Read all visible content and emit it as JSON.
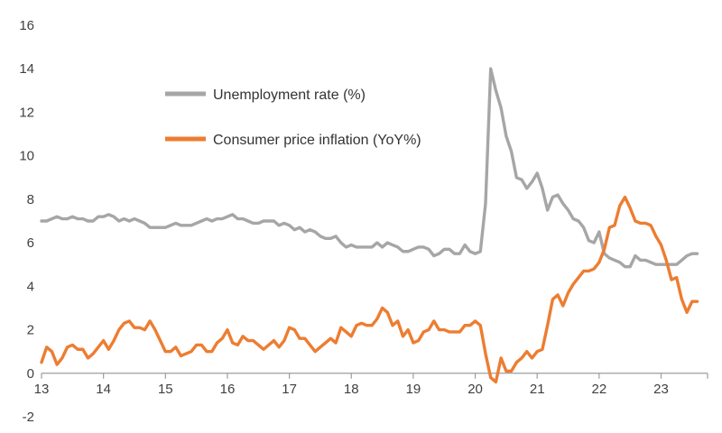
{
  "chart_data": {
    "type": "line",
    "title": "",
    "background_color": "#ffffff",
    "x_axis": {
      "label": "",
      "ticks": [
        "13",
        "14",
        "15",
        "16",
        "17",
        "18",
        "19",
        "20",
        "21",
        "22",
        "23"
      ],
      "range_start": 2013.0,
      "range_end": 2023.75,
      "frequency": "monthly",
      "start_month": "2013-01",
      "end_month": "2023-08",
      "axis_line_at_value": 0,
      "axis_color": "#9d9d9d"
    },
    "y_axis": {
      "label": "",
      "min": -2,
      "max": 16,
      "tick_step": 2,
      "ticks": [
        "-2",
        "0",
        "2",
        "4",
        "6",
        "8",
        "10",
        "12",
        "14",
        "16"
      ],
      "gridlines": false
    },
    "legend": {
      "position": "inside-top-left",
      "entries": [
        "Unemployment rate (%)",
        "Consumer price inflation (YoY%)"
      ]
    },
    "series": [
      {
        "name": "Unemployment rate (%)",
        "color": "#A6A6A6",
        "line_width": 3.4,
        "values": [
          7.0,
          7.0,
          7.1,
          7.2,
          7.1,
          7.1,
          7.2,
          7.1,
          7.1,
          7.0,
          7.0,
          7.2,
          7.2,
          7.3,
          7.2,
          7.0,
          7.1,
          7.0,
          7.1,
          7.0,
          6.9,
          6.7,
          6.7,
          6.7,
          6.7,
          6.8,
          6.9,
          6.8,
          6.8,
          6.8,
          6.9,
          7.0,
          7.1,
          7.0,
          7.1,
          7.1,
          7.2,
          7.3,
          7.1,
          7.1,
          7.0,
          6.9,
          6.9,
          7.0,
          7.0,
          7.0,
          6.8,
          6.9,
          6.8,
          6.6,
          6.7,
          6.5,
          6.6,
          6.5,
          6.3,
          6.2,
          6.2,
          6.3,
          6.0,
          5.8,
          5.9,
          5.8,
          5.8,
          5.8,
          5.8,
          6.0,
          5.8,
          6.0,
          5.9,
          5.8,
          5.6,
          5.6,
          5.7,
          5.8,
          5.8,
          5.7,
          5.4,
          5.5,
          5.7,
          5.7,
          5.5,
          5.5,
          5.9,
          5.6,
          5.5,
          5.6,
          7.8,
          14.0,
          13.0,
          12.2,
          10.9,
          10.2,
          9.0,
          8.9,
          8.5,
          8.8,
          9.2,
          8.5,
          7.5,
          8.1,
          8.2,
          7.8,
          7.5,
          7.1,
          7.0,
          6.7,
          6.1,
          6.0,
          6.5,
          5.5,
          5.3,
          5.2,
          5.1,
          4.9,
          4.9,
          5.4,
          5.2,
          5.2,
          5.1,
          5.0,
          5.0,
          5.0,
          5.0,
          5.0,
          5.2,
          5.4,
          5.5,
          5.5
        ]
      },
      {
        "name": "Consumer price inflation (YoY%)",
        "color": "#ED7D31",
        "line_width": 3.4,
        "values": [
          0.5,
          1.2,
          1.0,
          0.4,
          0.7,
          1.2,
          1.3,
          1.1,
          1.1,
          0.7,
          0.9,
          1.2,
          1.5,
          1.1,
          1.5,
          2.0,
          2.3,
          2.4,
          2.1,
          2.1,
          2.0,
          2.4,
          2.0,
          1.5,
          1.0,
          1.0,
          1.2,
          0.8,
          0.9,
          1.0,
          1.3,
          1.3,
          1.0,
          1.0,
          1.4,
          1.6,
          2.0,
          1.4,
          1.3,
          1.7,
          1.5,
          1.5,
          1.3,
          1.1,
          1.3,
          1.5,
          1.2,
          1.5,
          2.1,
          2.0,
          1.6,
          1.6,
          1.3,
          1.0,
          1.2,
          1.4,
          1.6,
          1.4,
          2.1,
          1.9,
          1.7,
          2.2,
          2.3,
          2.2,
          2.2,
          2.5,
          3.0,
          2.8,
          2.2,
          2.4,
          1.7,
          2.0,
          1.4,
          1.5,
          1.9,
          2.0,
          2.4,
          2.0,
          2.0,
          1.9,
          1.9,
          1.9,
          2.2,
          2.2,
          2.4,
          2.2,
          0.9,
          -0.2,
          -0.4,
          0.7,
          0.1,
          0.1,
          0.5,
          0.7,
          1.0,
          0.7,
          1.0,
          1.1,
          2.2,
          3.4,
          3.6,
          3.1,
          3.7,
          4.1,
          4.4,
          4.7,
          4.7,
          4.8,
          5.1,
          5.7,
          6.7,
          6.8,
          7.7,
          8.1,
          7.6,
          7.0,
          6.9,
          6.9,
          6.8,
          6.3,
          5.9,
          5.2,
          4.3,
          4.4,
          3.4,
          2.8,
          3.3,
          3.3
        ]
      }
    ]
  }
}
